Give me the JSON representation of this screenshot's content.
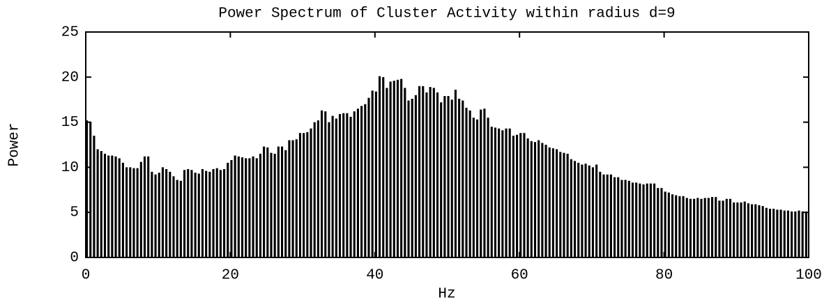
{
  "chart_data": {
    "type": "bar",
    "title": "Power Spectrum of Cluster Activity within radius d=9",
    "xlabel": "Hz",
    "ylabel": "Power",
    "color": "#000000",
    "xlim": [
      0,
      100
    ],
    "xticks": [
      0,
      20,
      40,
      60,
      80,
      100
    ],
    "ylim": [
      0,
      25
    ],
    "yticks": [
      0,
      5,
      10,
      15,
      20,
      25
    ],
    "x": [
      0,
      0.5,
      1,
      1.5,
      2,
      2.5,
      3,
      3.5,
      4,
      4.5,
      5,
      5.5,
      6,
      6.5,
      7,
      7.5,
      8,
      8.5,
      9,
      9.5,
      10,
      10.5,
      11,
      11.5,
      12,
      12.5,
      13,
      13.5,
      14,
      14.5,
      15,
      15.5,
      16,
      16.5,
      17,
      17.5,
      18,
      18.5,
      19,
      19.5,
      20,
      20.5,
      21,
      21.5,
      22,
      22.5,
      23,
      23.5,
      24,
      24.5,
      25,
      25.5,
      26,
      26.5,
      27,
      27.5,
      28,
      28.5,
      29,
      29.5,
      30,
      30.5,
      31,
      31.5,
      32,
      32.5,
      33,
      33.5,
      34,
      34.5,
      35,
      35.5,
      36,
      36.5,
      37,
      37.5,
      38,
      38.5,
      39,
      39.5,
      40,
      40.5,
      41,
      41.5,
      42,
      42.5,
      43,
      43.5,
      44,
      44.5,
      45,
      45.5,
      46,
      46.5,
      47,
      47.5,
      48,
      48.5,
      49,
      49.5,
      50,
      50.5,
      51,
      51.5,
      52,
      52.5,
      53,
      53.5,
      54,
      54.5,
      55,
      55.5,
      56,
      56.5,
      57,
      57.5,
      58,
      58.5,
      59,
      59.5,
      60,
      60.5,
      61,
      61.5,
      62,
      62.5,
      63,
      63.5,
      64,
      64.5,
      65,
      65.5,
      66,
      66.5,
      67,
      67.5,
      68,
      68.5,
      69,
      69.5,
      70,
      70.5,
      71,
      71.5,
      72,
      72.5,
      73,
      73.5,
      74,
      74.5,
      75,
      75.5,
      76,
      76.5,
      77,
      77.5,
      78,
      78.5,
      79,
      79.5,
      80,
      80.5,
      81,
      81.5,
      82,
      82.5,
      83,
      83.5,
      84,
      84.5,
      85,
      85.5,
      86,
      86.5,
      87,
      87.5,
      88,
      88.5,
      89,
      89.5,
      90,
      90.5,
      91,
      91.5,
      92,
      92.5,
      93,
      93.5,
      94,
      94.5,
      95,
      95.5,
      96,
      96.5,
      97,
      97.5,
      98,
      98.5,
      99,
      99.5
    ],
    "values": [
      15.2,
      15,
      13.5,
      12,
      11.8,
      11.5,
      11.3,
      11.3,
      11.2,
      11,
      10.5,
      10,
      10,
      9.9,
      9.9,
      10.6,
      11.2,
      11.2,
      9.5,
      9.2,
      9.4,
      10,
      9.8,
      9.5,
      9,
      8.6,
      8.5,
      9.7,
      9.8,
      9.7,
      9.4,
      9.3,
      9.8,
      9.6,
      9.5,
      9.8,
      9.9,
      9.7,
      9.8,
      10.5,
      10.8,
      11.3,
      11.2,
      11.1,
      11,
      11,
      11.2,
      11,
      11.5,
      12.3,
      12.2,
      11.6,
      11.5,
      12.3,
      12.3,
      11.9,
      13,
      13,
      13.1,
      13.8,
      13.8,
      13.9,
      14.3,
      15,
      15.2,
      16.3,
      16.2,
      15,
      15.7,
      15.4,
      15.9,
      16,
      16,
      15.6,
      16.2,
      16.5,
      16.8,
      17,
      17.7,
      18.5,
      18.4,
      20.1,
      20,
      18.8,
      19.5,
      19.6,
      19.7,
      19.8,
      18.8,
      17.4,
      17.6,
      18,
      19,
      19,
      18.3,
      18.9,
      18.8,
      18.3,
      17.2,
      17.9,
      17.9,
      17.5,
      18.6,
      17.6,
      17.4,
      16.6,
      16.3,
      15.5,
      15.3,
      16.4,
      16.5,
      15.5,
      14.5,
      14.4,
      14.3,
      14.1,
      14.3,
      14.3,
      13.5,
      13.6,
      13.8,
      13.8,
      13.2,
      12.9,
      12.8,
      13,
      12.7,
      12.5,
      12.2,
      12.1,
      12,
      11.7,
      11.6,
      11.5,
      10.9,
      10.7,
      10.5,
      10.3,
      10.4,
      10.2,
      10,
      10.3,
      9.5,
      9.2,
      9.2,
      9.2,
      8.9,
      8.9,
      8.6,
      8.6,
      8.5,
      8.3,
      8.3,
      8.2,
      8.1,
      8.2,
      8.2,
      8.2,
      7.7,
      7.7,
      7.3,
      7.2,
      7,
      6.9,
      6.8,
      6.8,
      6.6,
      6.5,
      6.5,
      6.6,
      6.5,
      6.6,
      6.6,
      6.7,
      6.7,
      6.3,
      6.3,
      6.5,
      6.5,
      6.1,
      6.1,
      6.1,
      6.2,
      6,
      5.9,
      5.9,
      5.8,
      5.7,
      5.5,
      5.4,
      5.4,
      5.3,
      5.3,
      5.2,
      5.2,
      5.1,
      5.1,
      5.2,
      5.1,
      5.1
    ]
  }
}
